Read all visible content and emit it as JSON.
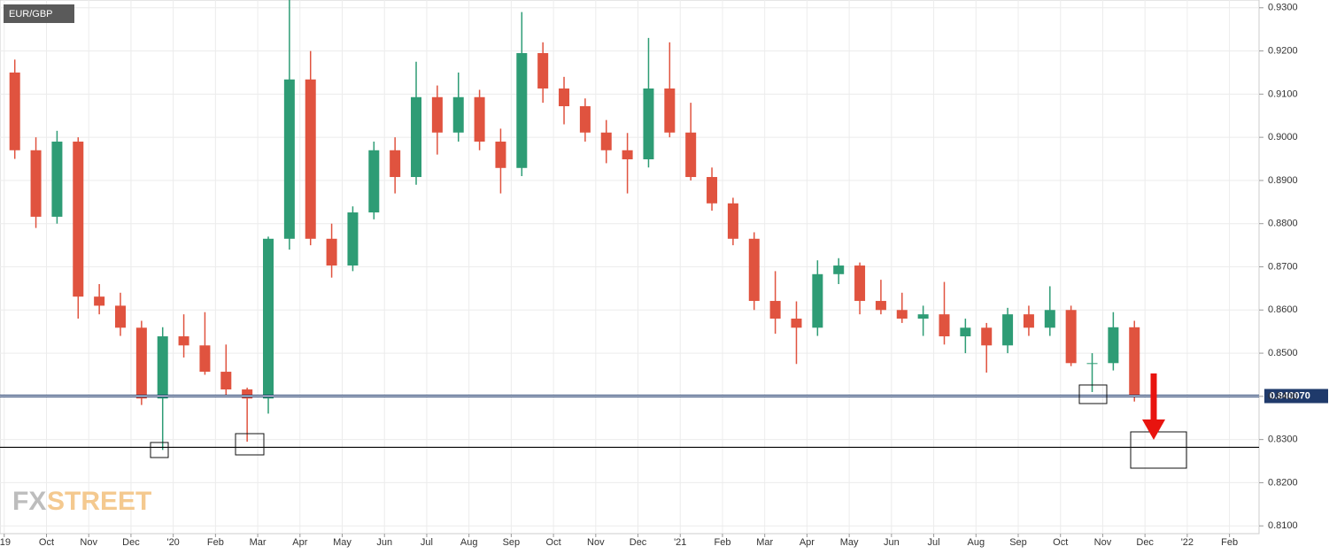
{
  "chart_data": {
    "type": "candlestick",
    "symbol": "EUR/GBP",
    "logo_parts": [
      "FX",
      "STREET"
    ],
    "grid": true,
    "xlim": [
      -0.1,
      29.7
    ],
    "ylim": [
      0.8082,
      0.9318
    ],
    "xticks": [
      {
        "value": 0,
        "label": "'19"
      },
      {
        "value": 1,
        "label": "Oct"
      },
      {
        "value": 2,
        "label": "Nov"
      },
      {
        "value": 3,
        "label": "Dec"
      },
      {
        "value": 4,
        "label": "'20"
      },
      {
        "value": 5,
        "label": "Feb"
      },
      {
        "value": 6,
        "label": "Mar"
      },
      {
        "value": 7,
        "label": "Apr"
      },
      {
        "value": 8,
        "label": "May"
      },
      {
        "value": 9,
        "label": "Jun"
      },
      {
        "value": 10,
        "label": "Jul"
      },
      {
        "value": 11,
        "label": "Aug"
      },
      {
        "value": 12,
        "label": "Sep"
      },
      {
        "value": 13,
        "label": "Oct"
      },
      {
        "value": 14,
        "label": "Nov"
      },
      {
        "value": 15,
        "label": "Dec"
      },
      {
        "value": 16,
        "label": "'21"
      },
      {
        "value": 17,
        "label": "Feb"
      },
      {
        "value": 18,
        "label": "Mar"
      },
      {
        "value": 19,
        "label": "Apr"
      },
      {
        "value": 20,
        "label": "May"
      },
      {
        "value": 21,
        "label": "Jun"
      },
      {
        "value": 22,
        "label": "Jul"
      },
      {
        "value": 23,
        "label": "Aug"
      },
      {
        "value": 24,
        "label": "Sep"
      },
      {
        "value": 25,
        "label": "Oct"
      },
      {
        "value": 26,
        "label": "Nov"
      },
      {
        "value": 27,
        "label": "Dec"
      },
      {
        "value": 28,
        "label": "'22"
      },
      {
        "value": 29,
        "label": "Feb"
      }
    ],
    "yticks": [
      {
        "value": 0.81,
        "label": "0.8100"
      },
      {
        "value": 0.82,
        "label": "0.8200"
      },
      {
        "value": 0.83,
        "label": "0.8300"
      },
      {
        "value": 0.84,
        "label": "0.8400"
      },
      {
        "value": 0.85,
        "label": "0.8500"
      },
      {
        "value": 0.86,
        "label": "0.8600"
      },
      {
        "value": 0.87,
        "label": "0.8700"
      },
      {
        "value": 0.88,
        "label": "0.8800"
      },
      {
        "value": 0.89,
        "label": "0.8900"
      },
      {
        "value": 0.9,
        "label": "0.9000"
      },
      {
        "value": 0.91,
        "label": "0.9100"
      },
      {
        "value": 0.92,
        "label": "0.9200"
      },
      {
        "value": 0.93,
        "label": "0.9300"
      }
    ],
    "levels": [
      {
        "value": 0.84007,
        "label": "0.840070",
        "color": "#1f3a6b"
      },
      {
        "value": 0.8282,
        "color": "#000000"
      }
    ],
    "up_color": "#2e9c75",
    "down_color": "#e0533f",
    "candles": {
      "x": [
        0.25,
        0.75,
        1.25,
        1.75,
        2.25,
        2.75,
        3.25,
        3.75,
        4.25,
        4.75,
        5.25,
        5.75,
        6.25,
        6.75,
        7.25,
        7.75,
        8.25,
        8.75,
        9.25,
        9.75,
        10.25,
        10.75,
        11.25,
        11.75,
        12.25,
        12.75,
        13.25,
        13.75,
        14.25,
        14.75,
        15.25,
        15.75,
        16.25,
        16.75,
        17.25,
        17.75,
        18.25,
        18.75,
        19.25,
        19.75,
        20.25,
        20.75,
        21.25,
        21.75,
        22.25,
        22.75,
        23.25,
        23.75,
        24.25,
        24.75,
        25.25,
        25.75,
        26.25,
        26.75
      ],
      "open": [
        0.915,
        0.897,
        0.8816,
        0.899,
        0.8631,
        0.861,
        0.8559,
        0.8395,
        0.8539,
        0.8518,
        0.8457,
        0.8416,
        0.8395,
        0.8765,
        0.9134,
        0.8765,
        0.8703,
        0.8826,
        0.897,
        0.8908,
        0.9093,
        0.9011,
        0.9093,
        0.899,
        0.8929,
        0.9195,
        0.9113,
        0.9072,
        0.9011,
        0.897,
        0.8949,
        0.9113,
        0.9011,
        0.8908,
        0.8847,
        0.8765,
        0.8621,
        0.858,
        0.8559,
        0.8683,
        0.8703,
        0.8621,
        0.86,
        0.858,
        0.859,
        0.8539,
        0.8559,
        0.8518,
        0.859,
        0.8559,
        0.86,
        0.8477,
        0.8477,
        0.856
      ],
      "high": [
        0.918,
        0.9,
        0.9015,
        0.9,
        0.866,
        0.864,
        0.8575,
        0.856,
        0.859,
        0.8595,
        0.852,
        0.842,
        0.877,
        0.932,
        0.92,
        0.88,
        0.884,
        0.899,
        0.9,
        0.9175,
        0.912,
        0.915,
        0.911,
        0.902,
        0.929,
        0.922,
        0.914,
        0.909,
        0.904,
        0.901,
        0.923,
        0.922,
        0.908,
        0.893,
        0.886,
        0.878,
        0.869,
        0.862,
        0.8715,
        0.872,
        0.871,
        0.867,
        0.864,
        0.861,
        0.8665,
        0.858,
        0.857,
        0.8605,
        0.861,
        0.8655,
        0.861,
        0.85,
        0.8595,
        0.8575
      ],
      "low": [
        0.895,
        0.879,
        0.88,
        0.858,
        0.859,
        0.854,
        0.838,
        0.8276,
        0.849,
        0.845,
        0.84,
        0.8295,
        0.836,
        0.874,
        0.875,
        0.8675,
        0.869,
        0.881,
        0.887,
        0.889,
        0.896,
        0.899,
        0.897,
        0.887,
        0.891,
        0.908,
        0.903,
        0.899,
        0.894,
        0.887,
        0.893,
        0.9,
        0.89,
        0.883,
        0.875,
        0.86,
        0.8545,
        0.8475,
        0.854,
        0.866,
        0.859,
        0.859,
        0.857,
        0.854,
        0.852,
        0.85,
        0.8455,
        0.85,
        0.854,
        0.854,
        0.847,
        0.841,
        0.846,
        0.8388
      ],
      "close": [
        0.897,
        0.8816,
        0.899,
        0.8631,
        0.861,
        0.8559,
        0.8395,
        0.8539,
        0.8518,
        0.8457,
        0.8416,
        0.8395,
        0.8765,
        0.9134,
        0.8765,
        0.8703,
        0.8826,
        0.897,
        0.8908,
        0.9093,
        0.9011,
        0.9093,
        0.899,
        0.8929,
        0.9195,
        0.9113,
        0.9072,
        0.9011,
        0.897,
        0.8949,
        0.9113,
        0.9011,
        0.8908,
        0.8847,
        0.8765,
        0.8621,
        0.858,
        0.8559,
        0.8683,
        0.8703,
        0.8621,
        0.86,
        0.858,
        0.859,
        0.8539,
        0.8559,
        0.8518,
        0.859,
        0.8559,
        0.86,
        0.8477,
        0.8477,
        0.856,
        0.8401
      ]
    }
  }
}
